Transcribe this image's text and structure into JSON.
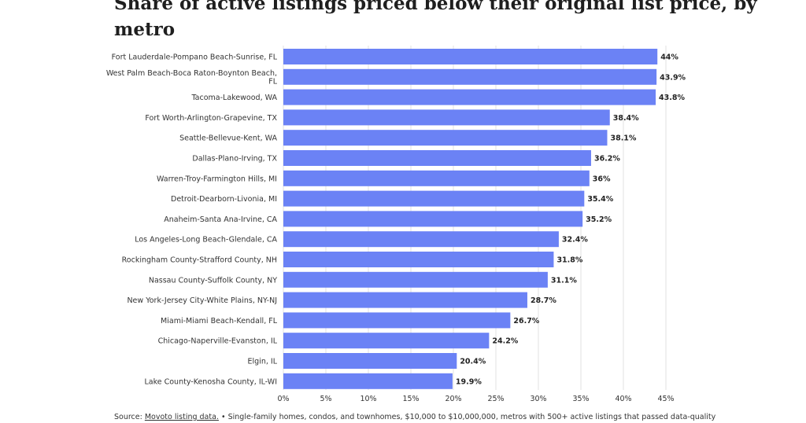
{
  "chart_data": {
    "type": "bar",
    "orientation": "horizontal",
    "title": "Share of active listings priced below their original list price, by metro",
    "categories": [
      "Fort Lauderdale-Pompano Beach-Sunrise, FL",
      "West Palm Beach-Boca Raton-Boynton Beach, FL",
      "Tacoma-Lakewood, WA",
      "Fort Worth-Arlington-Grapevine, TX",
      "Seattle-Bellevue-Kent, WA",
      "Dallas-Plano-Irving, TX",
      "Warren-Troy-Farmington Hills, MI",
      "Detroit-Dearborn-Livonia, MI",
      "Anaheim-Santa Ana-Irvine, CA",
      "Los Angeles-Long Beach-Glendale, CA",
      "Rockingham County-Strafford County, NH",
      "Nassau County-Suffolk County, NY",
      "New York-Jersey City-White Plains, NY-NJ",
      "Miami-Miami Beach-Kendall, FL",
      "Chicago-Naperville-Evanston, IL",
      "Elgin, IL",
      "Lake County-Kenosha County, IL-WI"
    ],
    "category_label_lines": [
      [
        "Fort Lauderdale-Pompano Beach-Sunrise, FL"
      ],
      [
        "West Palm Beach-Boca Raton-Boynton Beach,",
        "FL"
      ],
      [
        "Tacoma-Lakewood, WA"
      ],
      [
        "Fort Worth-Arlington-Grapevine, TX"
      ],
      [
        "Seattle-Bellevue-Kent, WA"
      ],
      [
        "Dallas-Plano-Irving, TX"
      ],
      [
        "Warren-Troy-Farmington Hills, MI"
      ],
      [
        "Detroit-Dearborn-Livonia, MI"
      ],
      [
        "Anaheim-Santa Ana-Irvine, CA"
      ],
      [
        "Los Angeles-Long Beach-Glendale, CA"
      ],
      [
        "Rockingham County-Strafford County, NH"
      ],
      [
        "Nassau County-Suffolk County, NY"
      ],
      [
        "New York-Jersey City-White Plains, NY-NJ"
      ],
      [
        "Miami-Miami Beach-Kendall, FL"
      ],
      [
        "Chicago-Naperville-Evanston, IL"
      ],
      [
        "Elgin, IL"
      ],
      [
        "Lake County-Kenosha County, IL-WI"
      ]
    ],
    "values": [
      44,
      43.9,
      43.8,
      38.4,
      38.1,
      36.2,
      36,
      35.4,
      35.2,
      32.4,
      31.8,
      31.1,
      28.7,
      26.7,
      24.2,
      20.4,
      19.9
    ],
    "value_labels": [
      "44%",
      "43.9%",
      "43.8%",
      "38.4%",
      "38.1%",
      "36.2%",
      "36%",
      "35.4%",
      "35.2%",
      "32.4%",
      "31.8%",
      "31.1%",
      "28.7%",
      "26.7%",
      "24.2%",
      "20.4%",
      "19.9%"
    ],
    "xlim": [
      0,
      45
    ],
    "xticks": [
      0,
      5,
      10,
      15,
      20,
      25,
      30,
      35,
      40,
      45
    ],
    "xtick_labels": [
      "0%",
      "5%",
      "10%",
      "15%",
      "20%",
      "25%",
      "30%",
      "35%",
      "40%",
      "45%"
    ],
    "grid": true,
    "bar_color": "#6b82f5"
  },
  "source": {
    "prefix": "Source: ",
    "link_text": "Movoto listing data.",
    "note": " • Single-family homes, condos, and townhomes, $10,000 to $10,000,000, metros with 500+ active listings that passed data-quality"
  }
}
